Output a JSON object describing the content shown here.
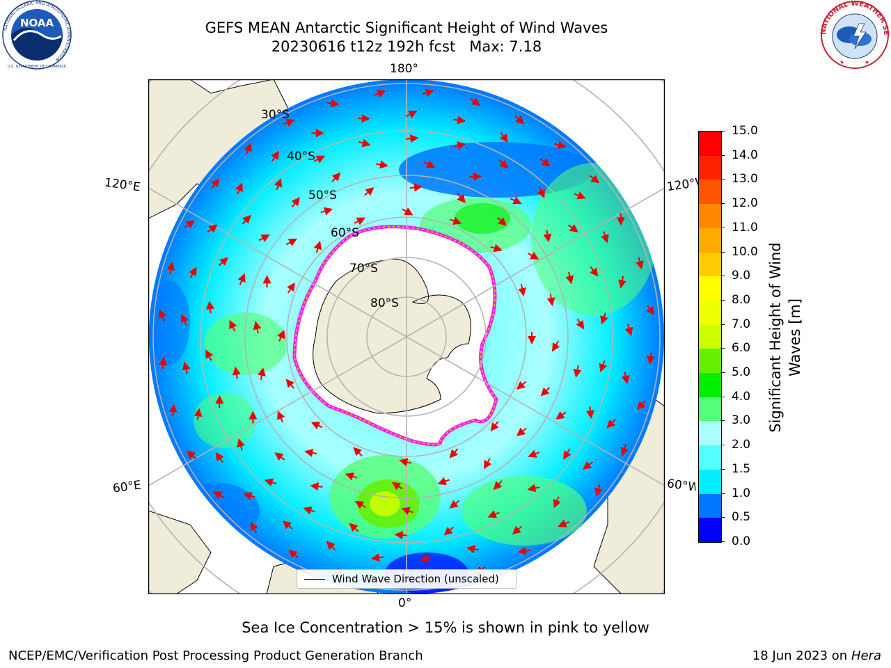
{
  "header": {
    "title_line1": "GEFS MEAN Antarctic Significant Height of Wind Waves",
    "run_label": "20230616 t12z 192h fcst",
    "max_label": "Max: 7.18"
  },
  "logos": {
    "noaa": {
      "text": "NOAA",
      "ring_text": "NATIONAL OCEANIC AND ATMOSPHERIC ADMINISTRATION",
      "bottom_text": "U.S. DEPARTMENT OF COMMERCE"
    },
    "nws": {
      "ring_text": "NATIONAL WEATHER SERVICE"
    }
  },
  "map": {
    "projection": "south-polar-stereographic",
    "longitude_labels": {
      "top": "180°",
      "bottom": "0°",
      "upper_left": "120°E",
      "upper_right": "120°W",
      "lower_left": "60°E",
      "lower_right": "60°W"
    },
    "latitude_labels": [
      "30°S",
      "40°S",
      "50°S",
      "60°S",
      "70°S",
      "80°S"
    ],
    "legend_label": "Wind Wave Direction (unscaled)",
    "colors": {
      "land": "#efedda",
      "sea_ice": "#ffffff",
      "ice_edge": "#ee22ee",
      "arrows": "#ee0000",
      "grid": "#b4b4b4"
    }
  },
  "colorbar": {
    "label_line1": "Significant Height of Wind",
    "label_line2": "Waves [m]",
    "ticks": [
      "0.0",
      "0.5",
      "1.0",
      "1.5",
      "2.0",
      "3.0",
      "4.0",
      "5.0",
      "6.0",
      "7.0",
      "8.0",
      "9.0",
      "10.0",
      "11.0",
      "12.0",
      "13.0",
      "14.0",
      "15.0"
    ],
    "colors": [
      "#0000ff",
      "#0077ff",
      "#00eeff",
      "#55ffff",
      "#aaffff",
      "#55ff77",
      "#00ee00",
      "#66ee00",
      "#ccff00",
      "#eeff00",
      "#ffff00",
      "#ffcc00",
      "#ffaa00",
      "#ff8800",
      "#ff5500",
      "#ff2200",
      "#ff0000"
    ]
  },
  "subtitle": "Sea Ice Concentration > 15% is shown in pink to yellow",
  "footer": {
    "left": "NCEP/EMC/Verification Post Processing Product Generation Branch",
    "date": "18 Jun 2023 on",
    "host": "Hera"
  }
}
